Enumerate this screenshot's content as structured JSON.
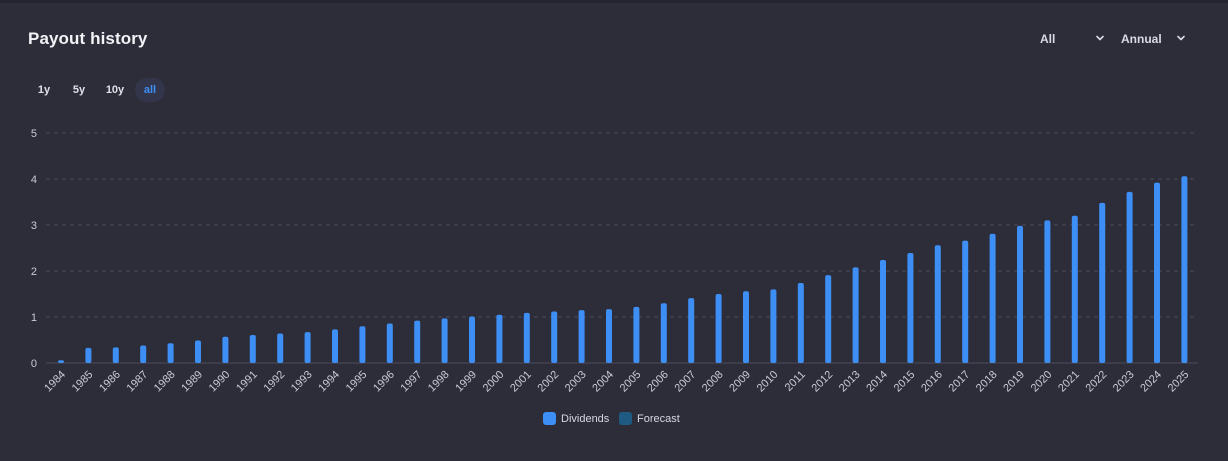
{
  "panel": {
    "title": "Payout history",
    "filters": {
      "type_value": "All",
      "frequency_value": "Annual"
    },
    "range_tabs": [
      {
        "label": "1y",
        "active": false
      },
      {
        "label": "5y",
        "active": false
      },
      {
        "label": "10y",
        "active": false
      },
      {
        "label": "all",
        "active": true
      }
    ]
  },
  "colors": {
    "dividends": "#3d8ef5",
    "forecast": "#1e5a82",
    "grid": "#4a4c5c",
    "axis_text": "#c9cbd4",
    "background": "#2d2d3a"
  },
  "chart_data": {
    "type": "bar",
    "title": "",
    "xlabel": "",
    "ylabel": "",
    "ylim": [
      0,
      5
    ],
    "yticks": [
      0,
      1,
      2,
      3,
      4,
      5
    ],
    "grid": true,
    "legend_position": "bottom-center",
    "categories": [
      "1984",
      "1985",
      "1986",
      "1987",
      "1988",
      "1989",
      "1990",
      "1991",
      "1992",
      "1993",
      "1994",
      "1995",
      "1996",
      "1997",
      "1998",
      "1999",
      "2000",
      "2001",
      "2002",
      "2003",
      "2004",
      "2005",
      "2006",
      "2007",
      "2008",
      "2009",
      "2010",
      "2011",
      "2012",
      "2013",
      "2014",
      "2015",
      "2016",
      "2017",
      "2018",
      "2019",
      "2020",
      "2021",
      "2022",
      "2023",
      "2024",
      "2025"
    ],
    "series": [
      {
        "name": "Dividends",
        "values": [
          0.06,
          0.33,
          0.34,
          0.38,
          0.43,
          0.49,
          0.57,
          0.61,
          0.64,
          0.67,
          0.73,
          0.8,
          0.86,
          0.92,
          0.97,
          1.01,
          1.05,
          1.09,
          1.12,
          1.15,
          1.17,
          1.22,
          1.3,
          1.41,
          1.5,
          1.56,
          1.6,
          1.74,
          1.91,
          2.08,
          2.24,
          2.39,
          2.56,
          2.66,
          2.81,
          2.98,
          3.1,
          3.2,
          3.48,
          3.72,
          3.92,
          4.06
        ]
      },
      {
        "name": "Forecast",
        "values": [
          0,
          0,
          0,
          0,
          0,
          0,
          0,
          0,
          0,
          0,
          0,
          0,
          0,
          0,
          0,
          0,
          0,
          0,
          0,
          0,
          0,
          0,
          0,
          0,
          0,
          0,
          0,
          0,
          0,
          0,
          0,
          0,
          0,
          0,
          0,
          0,
          0,
          0,
          0,
          0,
          0,
          0
        ]
      }
    ]
  }
}
